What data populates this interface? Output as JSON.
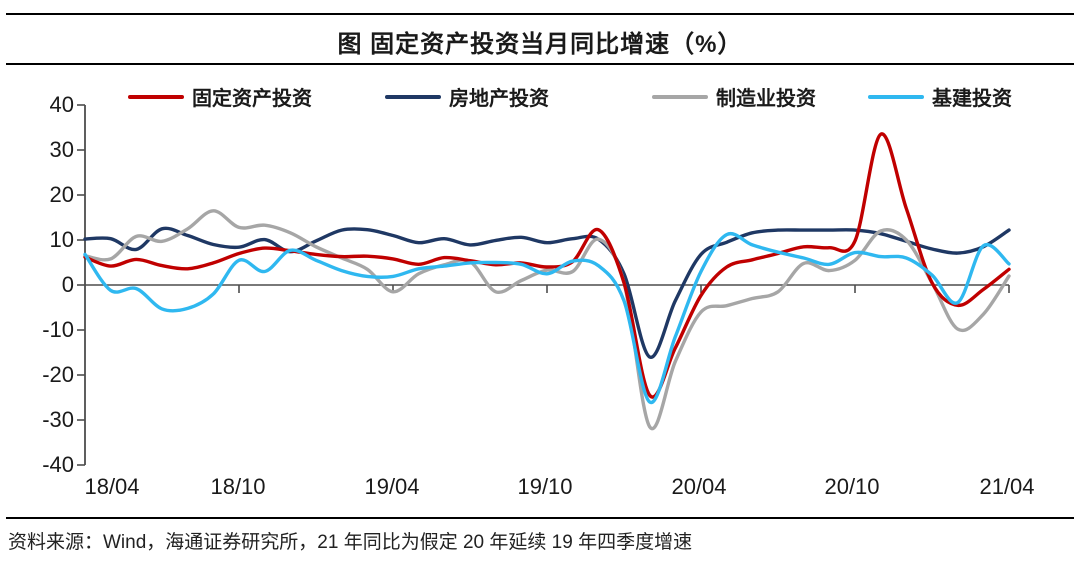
{
  "title": "图 固定资产投资当月同比增速（%）",
  "source_note": "资料来源：Wind，海通证券研究所，21 年同比为假定 20 年延续 19 年四季度增速",
  "chart_data": {
    "type": "line",
    "title": "图 固定资产投资当月同比增速（%）",
    "ylim": [
      -40,
      40
    ],
    "ytick_step": 10,
    "ytick_labels": [
      "40",
      "30",
      "20",
      "10",
      "0",
      "-10",
      "-20",
      "-30",
      "-40"
    ],
    "x_tick_labels": [
      "18/04",
      "18/10",
      "19/04",
      "19/10",
      "20/04",
      "20/10",
      "21/04"
    ],
    "x": [
      "18/04",
      "18/05",
      "18/06",
      "18/07",
      "18/08",
      "18/09",
      "18/10",
      "18/11",
      "18/12",
      "19/01",
      "19/02",
      "19/03",
      "19/04",
      "19/05",
      "19/06",
      "19/07",
      "19/08",
      "19/09",
      "19/10",
      "19/11",
      "19/12",
      "20/01",
      "20/02",
      "20/03",
      "20/04",
      "20/05",
      "20/06",
      "20/07",
      "20/08",
      "20/09",
      "20/10",
      "20/11",
      "20/12",
      "21/01",
      "21/02",
      "21/03",
      "21/04"
    ],
    "grid": "off",
    "legend_position": "top",
    "series": [
      {
        "name": "固定资产投资",
        "color": "#C00000",
        "values": [
          6.2,
          4.2,
          5.7,
          4.3,
          3.6,
          4.9,
          7.0,
          8.2,
          7.6,
          6.8,
          6.3,
          6.4,
          5.8,
          4.6,
          6.1,
          5.4,
          4.5,
          4.9,
          4.0,
          5.2,
          12.3,
          0.5,
          -24.5,
          -14.0,
          -2.3,
          4.0,
          5.6,
          7.0,
          8.5,
          8.3,
          9.8,
          33.5,
          17.0,
          0.5,
          -4.5,
          -1.0,
          3.5
        ]
      },
      {
        "name": "房地产投资",
        "color": "#1F3864",
        "values": [
          10.2,
          10.3,
          7.9,
          12.5,
          11.0,
          9.0,
          8.4,
          10.1,
          7.4,
          9.8,
          12.2,
          12.3,
          11.0,
          9.4,
          10.3,
          8.9,
          9.9,
          10.6,
          9.4,
          10.3,
          10.2,
          2.5,
          -16.0,
          -3.5,
          6.8,
          9.5,
          11.6,
          12.2,
          12.2,
          12.2,
          12.2,
          11.4,
          9.7,
          8.0,
          7.1,
          8.5,
          12.2
        ]
      },
      {
        "name": "制造业投资",
        "color": "#A6A6A6",
        "values": [
          6.5,
          5.8,
          10.8,
          9.7,
          12.5,
          16.5,
          12.8,
          13.3,
          11.6,
          8.5,
          6.0,
          3.5,
          -1.5,
          2.5,
          4.5,
          5.2,
          -1.5,
          1.0,
          3.3,
          3.0,
          10.2,
          0.5,
          -31.5,
          -17.0,
          -6.0,
          -4.6,
          -3.0,
          -1.5,
          4.8,
          3.2,
          5.5,
          12.0,
          10.0,
          0.5,
          -9.8,
          -6.5,
          2.0
        ]
      },
      {
        "name": "基建投资",
        "color": "#2FB8F0",
        "values": [
          6.8,
          -1.2,
          -0.8,
          -5.3,
          -5.2,
          -2.0,
          5.5,
          3.0,
          7.7,
          5.5,
          3.2,
          1.9,
          1.9,
          3.6,
          4.2,
          4.9,
          5.0,
          4.6,
          2.5,
          5.3,
          4.3,
          -3.5,
          -26.0,
          -11.5,
          3.0,
          11.2,
          8.9,
          7.3,
          6.0,
          4.6,
          7.2,
          6.3,
          6.0,
          2.2,
          -3.9,
          8.7,
          4.7
        ]
      }
    ]
  }
}
